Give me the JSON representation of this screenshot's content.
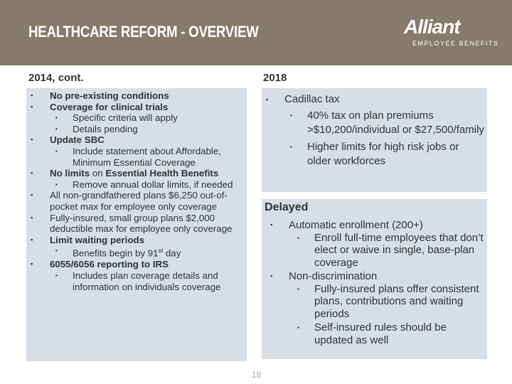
{
  "header": {
    "title": "HEALTHCARE REFORM - OVERVIEW",
    "logo": "Alliant",
    "logo_subtitle": "EMPLOYEE BENEFITS"
  },
  "left": {
    "heading": "2014, cont.",
    "items": [
      {
        "text": "No pre-existing conditions",
        "bold": true
      },
      {
        "text": "Coverage for clinical trials",
        "bold": true,
        "sub": [
          "Specific criteria will apply",
          "Details pending"
        ]
      },
      {
        "text": "Update SBC",
        "bold": true,
        "sub": [
          "Include statement about Affordable, Minimum Essential Coverage"
        ]
      },
      {
        "runs": [
          {
            "text": "No limits",
            "bold": true
          },
          {
            "text": " on "
          },
          {
            "text": "Essential Health Benefits",
            "bold": true
          }
        ],
        "sub": [
          "Remove annual dollar limits, if needed"
        ]
      },
      {
        "text": "All non-grandfathered plans $6,250 out-of-pocket max for employee only coverage"
      },
      {
        "text": "Fully-insured, small group plans $2,000 deductible max for employee only coverage"
      },
      {
        "text": "Limit waiting periods",
        "bold": true,
        "sub": [
          {
            "runs": [
              {
                "text": "Benefits begin by 91"
              },
              {
                "text": "st",
                "sup": true
              },
              {
                "text": " day"
              }
            ]
          }
        ]
      },
      {
        "text": "6055/6056 reporting to IRS",
        "bold": true,
        "sub": [
          "Includes plan coverage details and information on individuals coverage"
        ]
      }
    ]
  },
  "right": {
    "heading": "2018",
    "items": [
      {
        "text": "Cadillac tax",
        "sub": [
          "40% tax on plan premiums >$10,200/individual or $27,500/family",
          "Higher limits for high risk jobs or older workforces"
        ]
      }
    ]
  },
  "delayed": {
    "heading": "Delayed",
    "items": [
      {
        "text": "Automatic enrollment (200+)",
        "sub": [
          "Enroll full-time employees that don’t elect or waive in single, base-plan coverage"
        ]
      },
      {
        "text": "Non-discrimination",
        "sub": [
          "Fully-insured plans offer consistent plans, contributions and waiting periods",
          "Self-insured rules should be updated as well"
        ]
      }
    ]
  },
  "page_number": "18"
}
